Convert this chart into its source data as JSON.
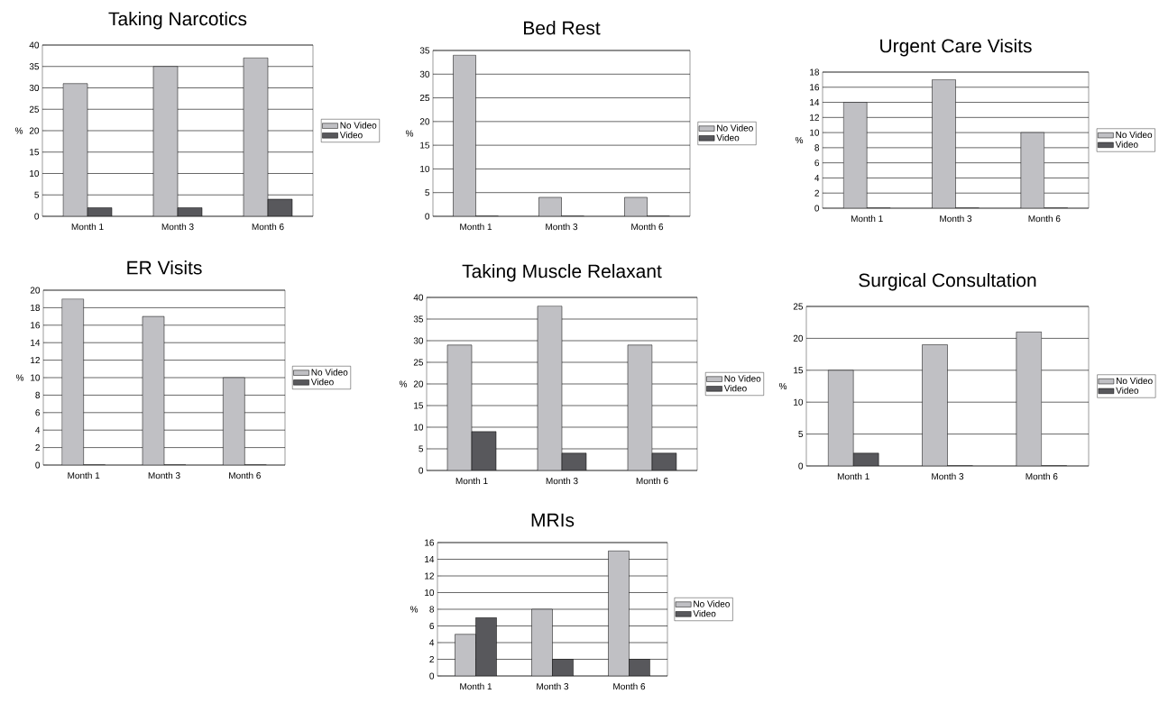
{
  "chart_data": [
    {
      "type": "bar",
      "title": "Taking Narcotics",
      "ylabel": "%",
      "categories": [
        "Month 1",
        "Month 3",
        "Month 6"
      ],
      "ylim": [
        0,
        40
      ],
      "yticks": [
        0,
        5,
        10,
        15,
        20,
        25,
        30,
        35,
        40
      ],
      "grid": "y",
      "legend": "right",
      "series": [
        {
          "name": "No Video",
          "color": "#c0c0c4",
          "values": [
            31,
            35,
            37
          ]
        },
        {
          "name": "Video",
          "color": "#58585c",
          "values": [
            2,
            2,
            4
          ]
        }
      ]
    },
    {
      "type": "bar",
      "title": "Bed Rest",
      "ylabel": "%",
      "categories": [
        "Month 1",
        "Month 3",
        "Month 6"
      ],
      "ylim": [
        0,
        35
      ],
      "yticks": [
        0,
        5,
        10,
        15,
        20,
        25,
        30,
        35
      ],
      "grid": "y",
      "legend": "right",
      "series": [
        {
          "name": "No Video",
          "color": "#c0c0c4",
          "values": [
            34,
            4,
            4
          ]
        },
        {
          "name": "Video",
          "color": "#58585c",
          "values": [
            0,
            0,
            0
          ]
        }
      ]
    },
    {
      "type": "bar",
      "title": "Urgent Care Visits",
      "ylabel": "%",
      "categories": [
        "Month 1",
        "Month 3",
        "Month 6"
      ],
      "ylim": [
        0,
        18
      ],
      "yticks": [
        0,
        2,
        4,
        6,
        8,
        10,
        12,
        14,
        16,
        18
      ],
      "grid": "y",
      "legend": "right",
      "series": [
        {
          "name": "No Video",
          "color": "#c0c0c4",
          "values": [
            14,
            17,
            10
          ]
        },
        {
          "name": "Video",
          "color": "#58585c",
          "values": [
            0,
            0,
            0
          ]
        }
      ]
    },
    {
      "type": "bar",
      "title": "ER Visits",
      "ylabel": "%",
      "categories": [
        "Month 1",
        "Month 3",
        "Month 6"
      ],
      "ylim": [
        0,
        20
      ],
      "yticks": [
        0,
        2,
        4,
        6,
        8,
        10,
        12,
        14,
        16,
        18,
        20
      ],
      "grid": "y",
      "legend": "right",
      "series": [
        {
          "name": "No Video",
          "color": "#c0c0c4",
          "values": [
            19,
            17,
            10
          ]
        },
        {
          "name": "Video",
          "color": "#58585c",
          "values": [
            0,
            0,
            0
          ]
        }
      ]
    },
    {
      "type": "bar",
      "title": "Taking Muscle Relaxant",
      "ylabel": "%",
      "categories": [
        "Month 1",
        "Month 3",
        "Month 6"
      ],
      "ylim": [
        0,
        40
      ],
      "yticks": [
        0,
        5,
        10,
        15,
        20,
        25,
        30,
        35,
        40
      ],
      "grid": "y",
      "legend": "right",
      "series": [
        {
          "name": "No Video",
          "color": "#c0c0c4",
          "values": [
            29,
            38,
            29
          ]
        },
        {
          "name": "Video",
          "color": "#58585c",
          "values": [
            9,
            4,
            4
          ]
        }
      ]
    },
    {
      "type": "bar",
      "title": "Surgical Consultation",
      "ylabel": "%",
      "categories": [
        "Month 1",
        "Month 3",
        "Month 6"
      ],
      "ylim": [
        0,
        25
      ],
      "yticks": [
        0,
        5,
        10,
        15,
        20,
        25
      ],
      "grid": "y",
      "legend": "right",
      "series": [
        {
          "name": "No Video",
          "color": "#c0c0c4",
          "values": [
            15,
            19,
            21
          ]
        },
        {
          "name": "Video",
          "color": "#58585c",
          "values": [
            2,
            0,
            0
          ]
        }
      ]
    },
    {
      "type": "bar",
      "title": "MRIs",
      "ylabel": "%",
      "categories": [
        "Month 1",
        "Month 3",
        "Month 6"
      ],
      "ylim": [
        0,
        16
      ],
      "yticks": [
        0,
        2,
        4,
        6,
        8,
        10,
        12,
        14,
        16
      ],
      "grid": "y",
      "legend": "right",
      "series": [
        {
          "name": "No Video",
          "color": "#c0c0c4",
          "values": [
            5,
            8,
            15
          ]
        },
        {
          "name": "Video",
          "color": "#58585c",
          "values": [
            7,
            2,
            2
          ]
        }
      ]
    }
  ]
}
